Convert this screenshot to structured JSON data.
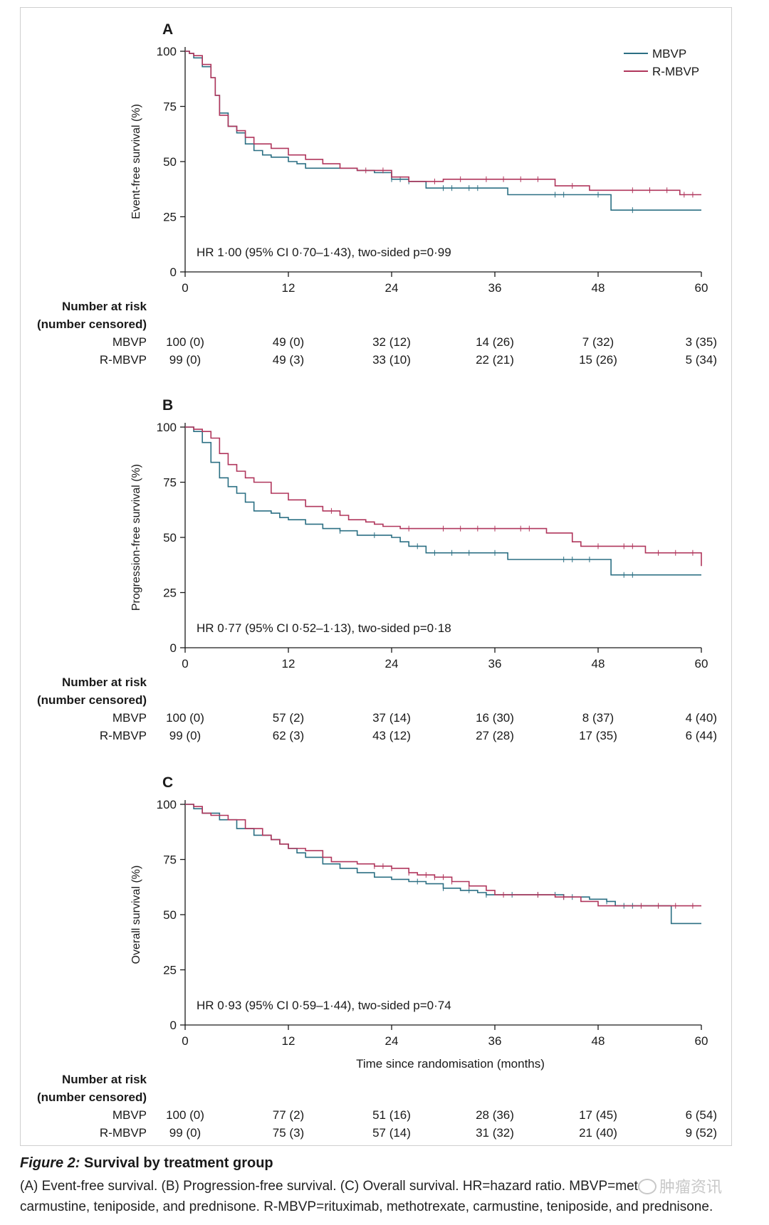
{
  "colors": {
    "MBVP": "#2b6f83",
    "R-MBVP": "#b0365c",
    "axis": "#1a1a1a"
  },
  "legend": [
    {
      "name": "MBVP",
      "color": "#2b6f83"
    },
    {
      "name": "R-MBVP",
      "color": "#b0365c"
    }
  ],
  "caption": {
    "figure_label": "Figure 2:",
    "title": "Survival by treatment group",
    "line1": "(A) Event-free survival. (B) Progression-free survival. (C) Overall survival. HR=hazard ratio. MBVP=met",
    "line2": "carmustine, teniposide, and prednisone. R-MBVP=rituximab, methotrexate, carmustine, teniposide, and prednisone.",
    "watermark": "肿瘤资讯"
  },
  "chart_data": [
    {
      "type": "line",
      "panel": "A",
      "ylabel": "Event-free survival (%)",
      "xlabel": "",
      "xlim": [
        0,
        60
      ],
      "ylim": [
        0,
        100
      ],
      "xticks": [
        0,
        12,
        24,
        36,
        48,
        60
      ],
      "yticks": [
        0,
        25,
        50,
        75,
        100
      ],
      "annotation": "HR 1·00 (95% CI 0·70–1·43), two-sided p=0·99",
      "series": [
        {
          "name": "MBVP",
          "steps": [
            [
              0,
              100
            ],
            [
              0.5,
              99
            ],
            [
              1,
              97
            ],
            [
              2,
              93
            ],
            [
              3,
              88
            ],
            [
              3.5,
              80
            ],
            [
              4,
              72
            ],
            [
              5,
              66
            ],
            [
              6,
              63
            ],
            [
              7,
              58
            ],
            [
              8,
              55
            ],
            [
              9,
              53
            ],
            [
              10,
              52
            ],
            [
              12,
              50
            ],
            [
              13,
              49
            ],
            [
              14,
              47
            ],
            [
              19,
              47
            ],
            [
              20,
              46
            ],
            [
              22,
              45
            ],
            [
              24,
              42
            ],
            [
              26,
              41
            ],
            [
              28,
              38
            ],
            [
              37,
              38
            ],
            [
              37.5,
              35
            ],
            [
              49,
              35
            ],
            [
              49.5,
              28
            ],
            [
              60,
              28
            ]
          ],
          "censor": [
            24,
            25,
            26,
            30,
            31,
            33,
            34,
            43,
            44,
            48,
            52
          ]
        },
        {
          "name": "R-MBVP",
          "steps": [
            [
              0,
              100
            ],
            [
              0.5,
              99
            ],
            [
              1,
              98
            ],
            [
              2,
              94
            ],
            [
              3,
              88
            ],
            [
              3.5,
              80
            ],
            [
              4,
              71
            ],
            [
              5,
              66
            ],
            [
              6,
              64
            ],
            [
              7,
              61
            ],
            [
              8,
              58
            ],
            [
              10,
              56
            ],
            [
              12,
              53
            ],
            [
              14,
              51
            ],
            [
              16,
              49
            ],
            [
              18,
              47
            ],
            [
              19,
              47
            ],
            [
              20,
              46
            ],
            [
              22,
              46
            ],
            [
              24,
              43
            ],
            [
              26,
              41
            ],
            [
              28,
              41
            ],
            [
              30,
              42
            ],
            [
              42,
              42
            ],
            [
              43,
              39
            ],
            [
              47,
              37
            ],
            [
              57,
              37
            ],
            [
              57.5,
              35
            ],
            [
              60,
              35
            ]
          ],
          "censor": [
            21,
            23,
            29,
            32,
            35,
            37,
            39,
            41,
            45,
            52,
            54,
            56,
            58,
            59
          ]
        }
      ],
      "risk_table": {
        "header": [
          "Number at risk",
          "(number censored)"
        ],
        "rows": [
          {
            "label": "MBVP",
            "values": [
              "100 (0)",
              "49 (0)",
              "32 (12)",
              "14 (26)",
              "7 (32)",
              "3 (35)"
            ]
          },
          {
            "label": "R-MBVP",
            "values": [
              "99 (0)",
              "49 (3)",
              "33 (10)",
              "22 (21)",
              "15 (26)",
              "5 (34)"
            ]
          }
        ]
      }
    },
    {
      "type": "line",
      "panel": "B",
      "ylabel": "Progression-free survival (%)",
      "xlabel": "",
      "xlim": [
        0,
        60
      ],
      "ylim": [
        0,
        100
      ],
      "xticks": [
        0,
        12,
        24,
        36,
        48,
        60
      ],
      "yticks": [
        0,
        25,
        50,
        75,
        100
      ],
      "annotation": "HR 0·77 (95% CI 0·52–1·13), two-sided p=0·18",
      "series": [
        {
          "name": "MBVP",
          "steps": [
            [
              0,
              100
            ],
            [
              1,
              98
            ],
            [
              2,
              93
            ],
            [
              3,
              84
            ],
            [
              4,
              77
            ],
            [
              5,
              73
            ],
            [
              6,
              70
            ],
            [
              7,
              66
            ],
            [
              8,
              62
            ],
            [
              10,
              61
            ],
            [
              11,
              59
            ],
            [
              12,
              58
            ],
            [
              14,
              56
            ],
            [
              16,
              54
            ],
            [
              18,
              53
            ],
            [
              20,
              51
            ],
            [
              23,
              51
            ],
            [
              24,
              50
            ],
            [
              25,
              48
            ],
            [
              26,
              46
            ],
            [
              28,
              43
            ],
            [
              37,
              43
            ],
            [
              37.5,
              40
            ],
            [
              49,
              40
            ],
            [
              49.5,
              33
            ],
            [
              60,
              33
            ]
          ],
          "censor": [
            18,
            22,
            27,
            29,
            31,
            33,
            36,
            44,
            45,
            47,
            51,
            52
          ]
        },
        {
          "name": "R-MBVP",
          "steps": [
            [
              0,
              100
            ],
            [
              1,
              99
            ],
            [
              2,
              98
            ],
            [
              3,
              95
            ],
            [
              4,
              88
            ],
            [
              5,
              83
            ],
            [
              6,
              80
            ],
            [
              7,
              77
            ],
            [
              8,
              75
            ],
            [
              10,
              70
            ],
            [
              12,
              67
            ],
            [
              14,
              64
            ],
            [
              16,
              62
            ],
            [
              18,
              60
            ],
            [
              19,
              58
            ],
            [
              21,
              57
            ],
            [
              22,
              56
            ],
            [
              23,
              55
            ],
            [
              25,
              54
            ],
            [
              41,
              54
            ],
            [
              42,
              52
            ],
            [
              45,
              48
            ],
            [
              46,
              46
            ],
            [
              53,
              46
            ],
            [
              53.5,
              43
            ],
            [
              59.5,
              43
            ],
            [
              60,
              37
            ]
          ],
          "censor": [
            17,
            26,
            30,
            32,
            34,
            36,
            39,
            40,
            48,
            51,
            52,
            55,
            57,
            59
          ]
        }
      ],
      "risk_table": {
        "header": [
          "Number at risk",
          "(number censored)"
        ],
        "rows": [
          {
            "label": "MBVP",
            "values": [
              "100 (0)",
              "57 (2)",
              "37 (14)",
              "16 (30)",
              "8 (37)",
              "4 (40)"
            ]
          },
          {
            "label": "R-MBVP",
            "values": [
              "99 (0)",
              "62 (3)",
              "43 (12)",
              "27 (28)",
              "17 (35)",
              "6 (44)"
            ]
          }
        ]
      }
    },
    {
      "type": "line",
      "panel": "C",
      "ylabel": "Overall survival (%)",
      "xlabel": "Time since randomisation (months)",
      "xlim": [
        0,
        60
      ],
      "ylim": [
        0,
        100
      ],
      "xticks": [
        0,
        12,
        24,
        36,
        48,
        60
      ],
      "yticks": [
        0,
        25,
        50,
        75,
        100
      ],
      "annotation": "HR 0·93 (95% CI 0·59–1·44), two-sided p=0·74",
      "series": [
        {
          "name": "MBVP",
          "steps": [
            [
              0,
              100
            ],
            [
              1,
              98
            ],
            [
              2,
              96
            ],
            [
              4,
              93
            ],
            [
              6,
              89
            ],
            [
              8,
              86
            ],
            [
              10,
              84
            ],
            [
              11,
              82
            ],
            [
              12,
              80
            ],
            [
              13,
              78
            ],
            [
              14,
              76
            ],
            [
              16,
              73
            ],
            [
              18,
              71
            ],
            [
              20,
              69
            ],
            [
              22,
              67
            ],
            [
              24,
              66
            ],
            [
              26,
              65
            ],
            [
              28,
              64
            ],
            [
              30,
              62
            ],
            [
              32,
              61
            ],
            [
              34,
              60
            ],
            [
              35,
              59
            ],
            [
              36,
              59
            ],
            [
              43,
              59
            ],
            [
              44,
              58
            ],
            [
              47,
              57
            ],
            [
              49,
              56
            ],
            [
              50,
              54
            ],
            [
              56,
              54
            ],
            [
              56.5,
              46
            ],
            [
              60,
              46
            ]
          ],
          "censor": [
            27,
            30,
            33,
            35,
            38,
            41,
            43,
            44,
            45,
            49,
            51,
            52
          ]
        },
        {
          "name": "R-MBVP",
          "steps": [
            [
              0,
              100
            ],
            [
              1,
              99
            ],
            [
              2,
              96
            ],
            [
              3,
              95
            ],
            [
              5,
              93
            ],
            [
              7,
              89
            ],
            [
              9,
              86
            ],
            [
              10,
              84
            ],
            [
              11,
              82
            ],
            [
              12,
              80
            ],
            [
              14,
              79
            ],
            [
              16,
              76
            ],
            [
              17,
              74
            ],
            [
              20,
              73
            ],
            [
              22,
              72
            ],
            [
              24,
              71
            ],
            [
              26,
              69
            ],
            [
              27,
              68
            ],
            [
              29,
              67
            ],
            [
              31,
              65
            ],
            [
              33,
              63
            ],
            [
              35,
              61
            ],
            [
              36,
              59
            ],
            [
              40,
              59
            ],
            [
              43,
              58
            ],
            [
              46,
              56
            ],
            [
              48,
              54
            ],
            [
              50,
              54
            ],
            [
              60,
              54
            ]
          ],
          "censor": [
            22,
            23,
            24,
            26,
            28,
            29,
            30,
            31,
            33,
            37,
            41,
            44,
            53,
            55,
            57,
            59
          ]
        }
      ],
      "risk_table": {
        "header": [
          "Number at risk",
          "(number censored)"
        ],
        "rows": [
          {
            "label": "MBVP",
            "values": [
              "100 (0)",
              "77 (2)",
              "51 (16)",
              "28 (36)",
              "17 (45)",
              "6 (54)"
            ]
          },
          {
            "label": "R-MBVP",
            "values": [
              "99 (0)",
              "75 (3)",
              "57 (14)",
              "31 (32)",
              "21 (40)",
              "9 (52)"
            ]
          }
        ]
      }
    }
  ]
}
